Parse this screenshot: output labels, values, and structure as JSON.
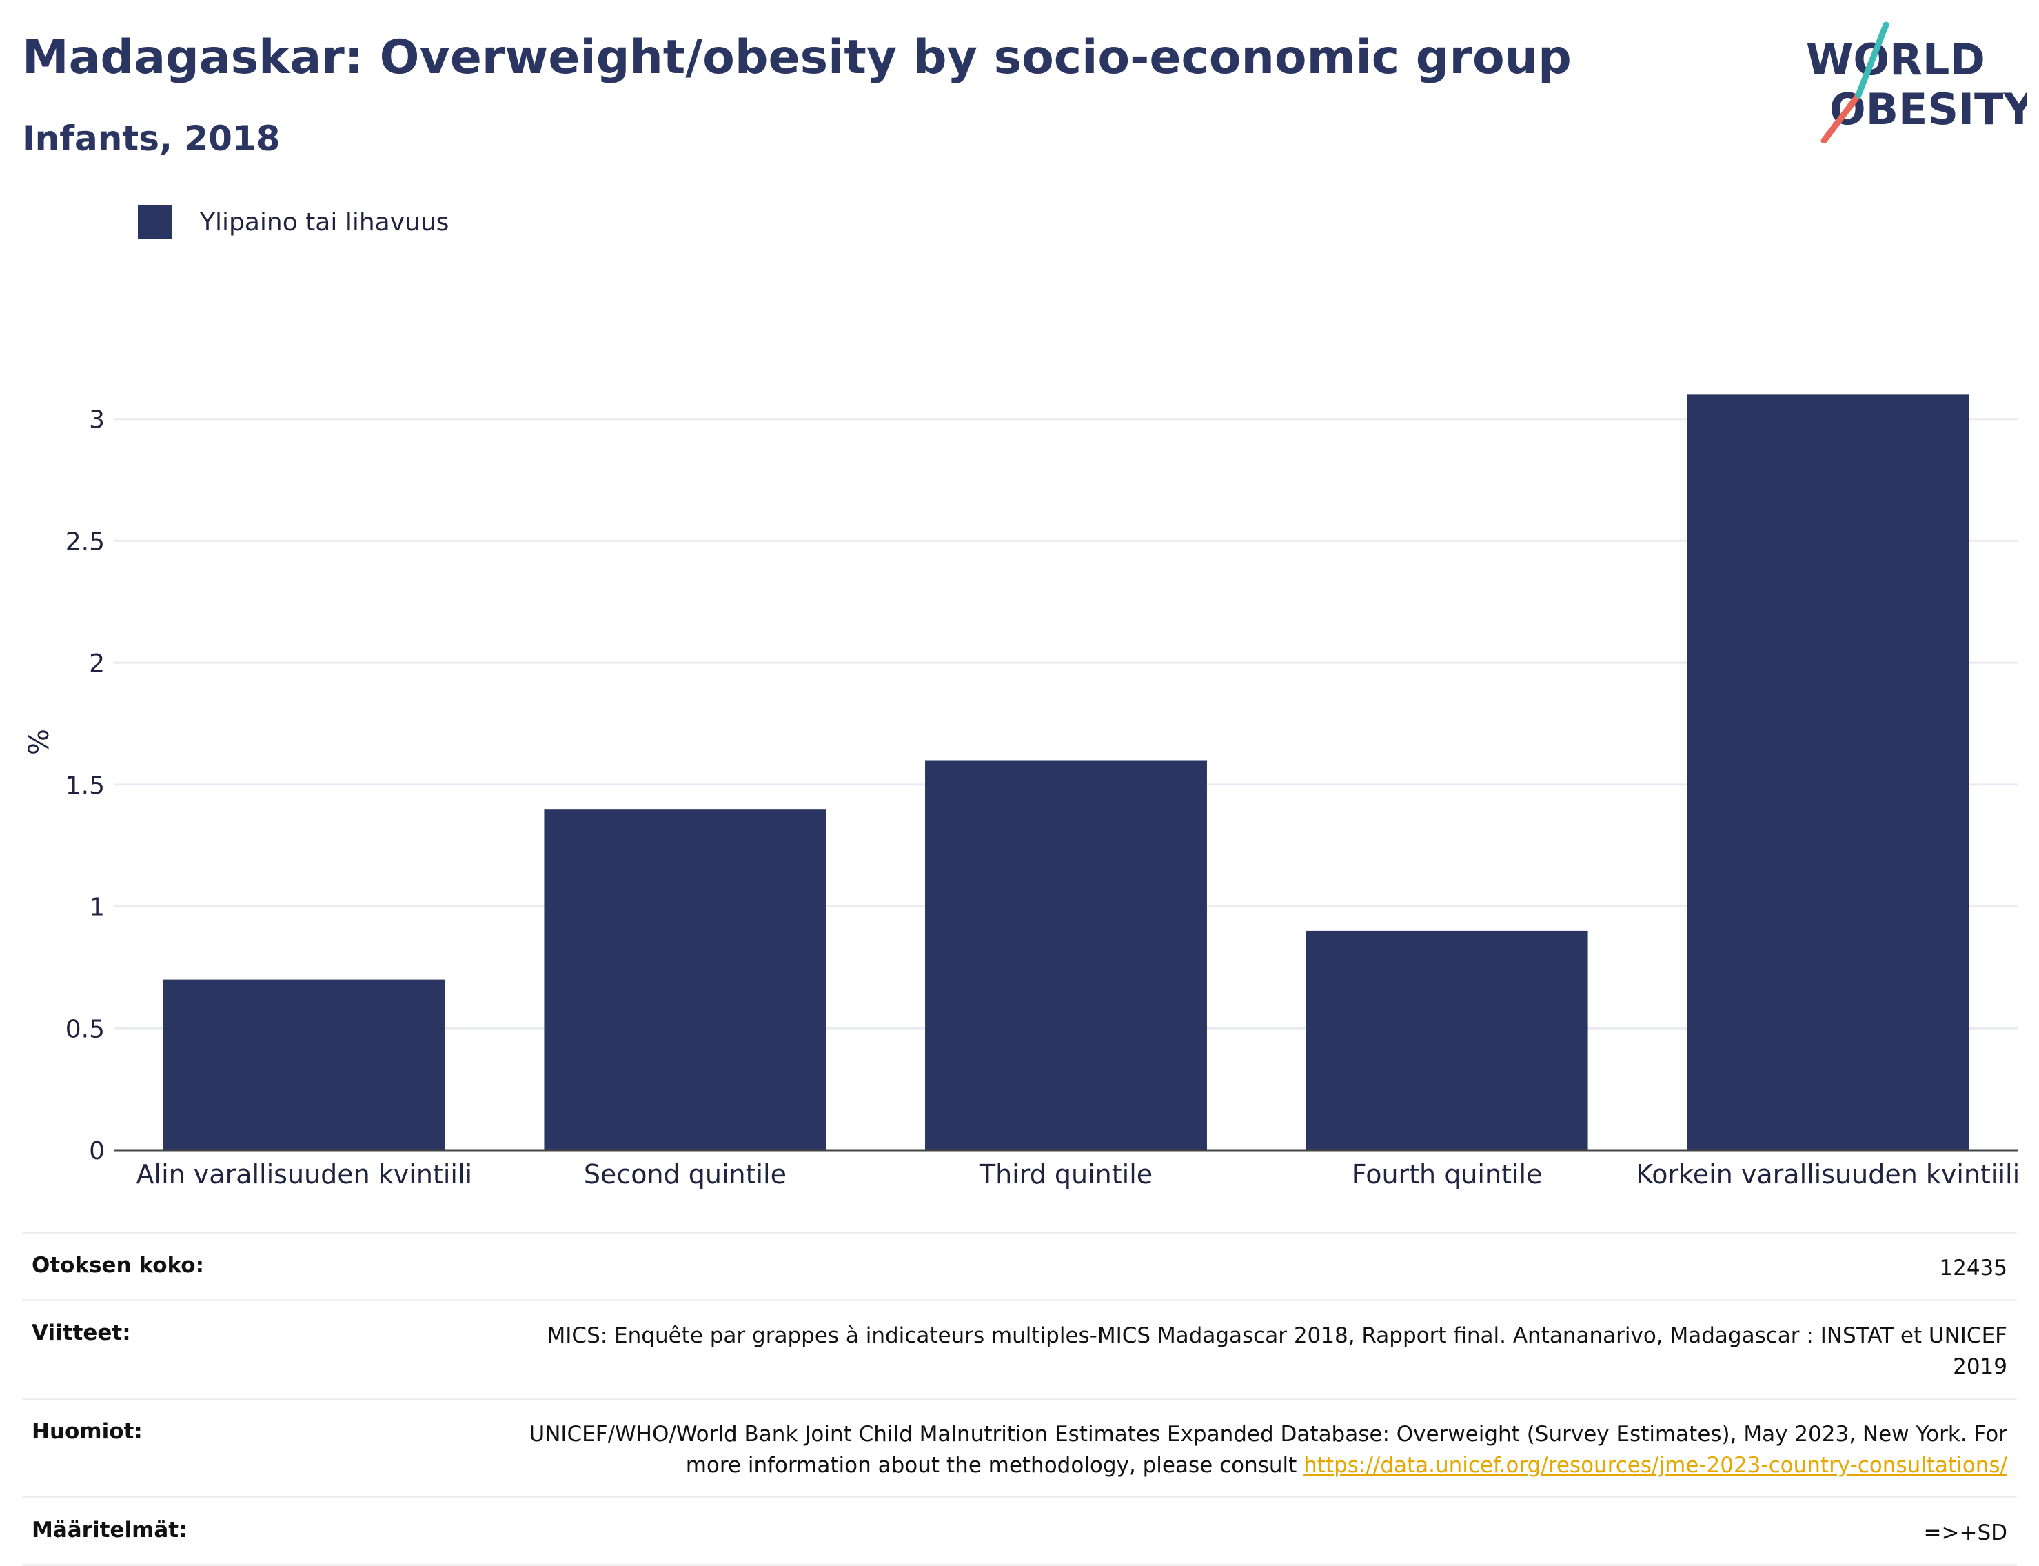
{
  "header": {
    "title": "Madagaskar: Overweight/obesity by socio-economic group",
    "subtitle": "Infants, 2018"
  },
  "logo": {
    "line1": "WORLD",
    "line2": "OBESITY",
    "colors": {
      "text": "#2b3562",
      "slash_top": "#3dbcb6",
      "slash_bottom": "#e8675a"
    }
  },
  "legend": {
    "items": [
      {
        "label": "Ylipaino tai lihavuus",
        "color": "#2b3562"
      }
    ]
  },
  "chart_data": {
    "type": "bar",
    "categories": [
      "Alin varallisuuden kvintiili",
      "Second quintile",
      "Third quintile",
      "Fourth quintile",
      "Korkein varallisuuden kvintiili"
    ],
    "series": [
      {
        "name": "Ylipaino tai lihavuus",
        "values": [
          0.7,
          1.4,
          1.6,
          0.9,
          3.1
        ],
        "color": "#2b3562"
      }
    ],
    "ylabel": "%",
    "ylim": [
      0,
      3.35
    ],
    "yticks": [
      0,
      0.5,
      1,
      1.5,
      2,
      2.5,
      3
    ],
    "ytick_labels": [
      "0",
      "0.5",
      "1",
      "1.5",
      "2",
      "2.5",
      "3"
    ],
    "grid": true,
    "legend_position": "top-left"
  },
  "footer": {
    "rows": [
      {
        "key": "Otoksen koko:",
        "value": "12435"
      },
      {
        "key": "Viitteet:",
        "value": "MICS: Enquête par grappes à indicateurs multiples-MICS Madagascar 2018, Rapport final. Antananarivo, Madagascar : INSTAT et UNICEF 2019"
      },
      {
        "key": "Huomiot:",
        "value": "UNICEF/WHO/World Bank Joint Child Malnutrition Estimates Expanded Database: Overweight (Survey Estimates), May 2023, New York. For more information about the methodology, please consult ",
        "link": "https://data.unicef.org/resources/jme-2023-country-consultations/"
      },
      {
        "key": "Määritelmät:",
        "value": "=>+SD"
      }
    ]
  }
}
